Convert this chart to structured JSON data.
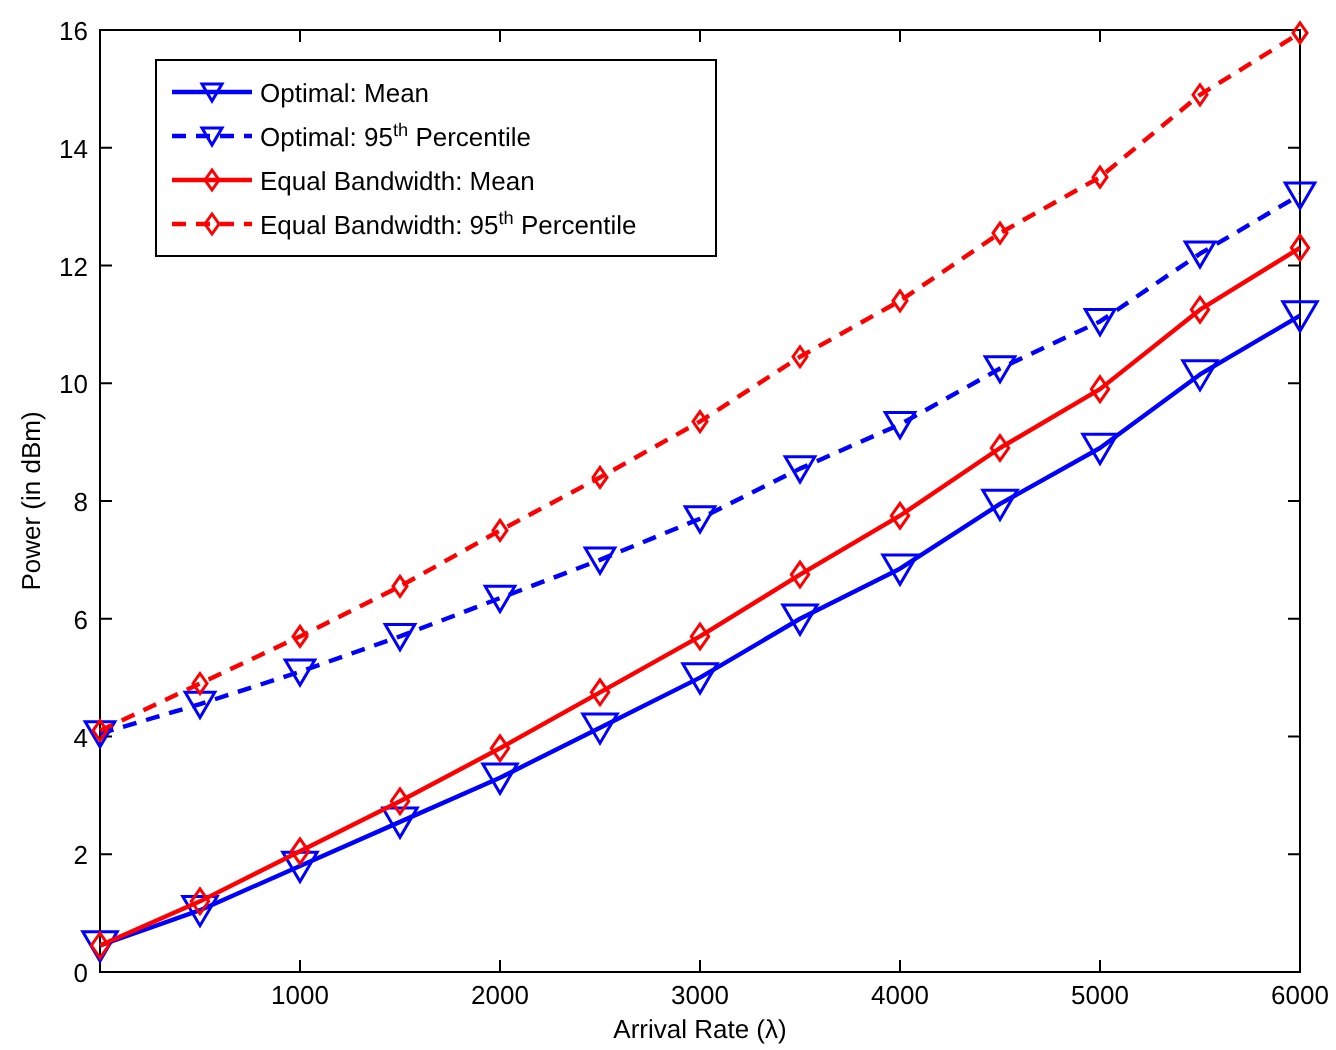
{
  "chart_data": {
    "type": "line",
    "xlabel": "Arrival Rate (λ)",
    "ylabel": "Power (in dBm)",
    "x": [
      0,
      500,
      1000,
      1500,
      2000,
      2500,
      3000,
      3500,
      4000,
      4500,
      5000,
      5500,
      6000
    ],
    "xlim": [
      0,
      6000
    ],
    "xticks": [
      1000,
      2000,
      3000,
      4000,
      5000,
      6000
    ],
    "ylim": [
      0,
      16
    ],
    "yticks": [
      0,
      2,
      4,
      6,
      8,
      10,
      12,
      14,
      16
    ],
    "grid": false,
    "legend": "top left",
    "series": [
      {
        "name": "Optimal: Mean",
        "color": "#0000ff",
        "marker": "triangle",
        "line_style": "solid",
        "values": [
          0.45,
          1.05,
          1.8,
          2.55,
          3.3,
          4.15,
          5.0,
          6.0,
          6.85,
          7.95,
          8.9,
          10.15,
          11.15
        ]
      },
      {
        "name": "Optimal: 95$^{th}$ Percentile",
        "color": "#0000ff",
        "marker": "triangle",
        "line_style": "dashed",
        "values": [
          4.05,
          4.55,
          5.1,
          5.7,
          6.35,
          7.0,
          7.7,
          8.55,
          9.3,
          10.25,
          11.05,
          12.2,
          13.2
        ]
      },
      {
        "name": "Equal Bandwidth: Mean",
        "color": "#ff0000",
        "marker": "diamond",
        "line_style": "solid",
        "values": [
          0.45,
          1.2,
          2.05,
          2.9,
          3.8,
          4.75,
          5.7,
          6.75,
          7.75,
          8.9,
          9.9,
          11.25,
          12.3
        ]
      },
      {
        "name": "Equal Bandwidth: 95$^{th}$ Percentile",
        "color": "#ff0000",
        "marker": "diamond",
        "line_style": "dashed",
        "values": [
          4.1,
          4.9,
          5.7,
          6.55,
          7.5,
          8.4,
          9.35,
          10.45,
          11.4,
          12.55,
          13.5,
          14.9,
          15.95
        ]
      }
    ]
  }
}
